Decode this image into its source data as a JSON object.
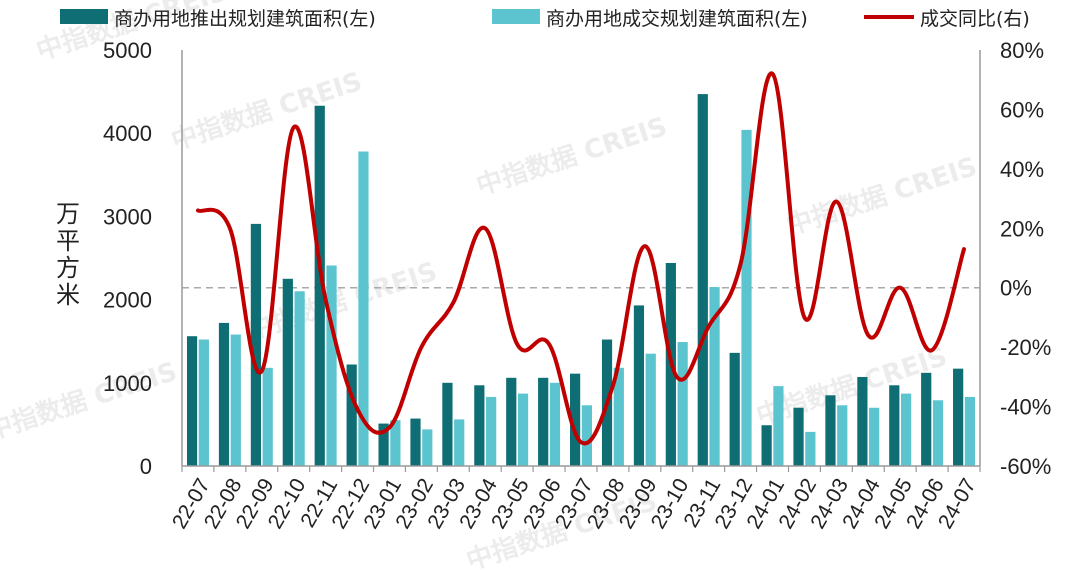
{
  "chart_data": {
    "type": "bar",
    "categories": [
      "22-07",
      "22-08",
      "22-09",
      "22-10",
      "22-11",
      "22-12",
      "23-01",
      "23-02",
      "23-03",
      "23-04",
      "23-05",
      "23-06",
      "23-07",
      "23-08",
      "23-09",
      "23-10",
      "23-11",
      "23-12",
      "24-01",
      "24-02",
      "24-03",
      "24-04",
      "24-05",
      "24-06",
      "24-07"
    ],
    "series": [
      {
        "name": "商办用地推出规划建筑面积(左)",
        "type": "bar",
        "axis": "left",
        "color": "#0e6e73",
        "values": [
          1560,
          1720,
          2910,
          2250,
          4330,
          1220,
          510,
          570,
          1000,
          970,
          1060,
          1060,
          1110,
          1520,
          1930,
          2440,
          4470,
          1360,
          490,
          700,
          850,
          1070,
          970,
          1120,
          1170
        ]
      },
      {
        "name": "商办用地成交规划建筑面积(左)",
        "type": "bar",
        "axis": "left",
        "color": "#5bc4cf",
        "values": [
          1520,
          1580,
          1180,
          2100,
          2410,
          3780,
          550,
          440,
          560,
          830,
          870,
          1000,
          730,
          1180,
          1350,
          1490,
          2150,
          4040,
          960,
          410,
          730,
          700,
          870,
          790,
          830
        ]
      },
      {
        "name": "成交同比(右)",
        "type": "line",
        "axis": "right",
        "color": "#c00000",
        "values": [
          26,
          20,
          -28,
          54,
          -4,
          -41,
          -47,
          -20,
          -5,
          20,
          -19,
          -19,
          -52,
          -33,
          14,
          -30,
          -13,
          8,
          72,
          -10,
          29,
          -16,
          0,
          -21,
          13
        ]
      }
    ],
    "left_axis": {
      "label": "万平方米",
      "min": 0,
      "max": 5000,
      "ticks": [
        0,
        1000,
        2000,
        3000,
        4000,
        5000
      ]
    },
    "right_axis": {
      "min": -60,
      "max": 80,
      "ticks": [
        "-60%",
        "-40%",
        "-20%",
        "0%",
        "20%",
        "40%",
        "60%",
        "80%"
      ]
    },
    "legend_position": "top",
    "reference_line": {
      "axis": "right",
      "value": 0,
      "style": "dashed",
      "color": "#aaaaaa"
    },
    "watermark": "中指数据 CREIS"
  }
}
